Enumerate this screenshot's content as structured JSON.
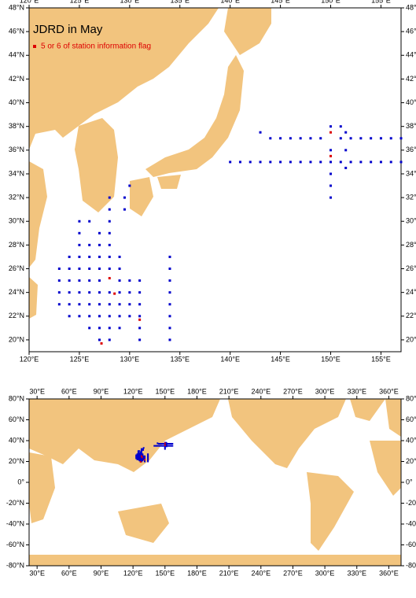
{
  "main_map": {
    "title": "JDRD in May",
    "legend_label": "5 or 6 of station information flag",
    "xlim": [
      120,
      157
    ],
    "ylim": [
      19,
      48
    ],
    "xticks": [
      {
        "value": 120,
        "label": "120°E"
      },
      {
        "value": 125,
        "label": "125°E"
      },
      {
        "value": 130,
        "label": "130°E"
      },
      {
        "value": 135,
        "label": "135°E"
      },
      {
        "value": 140,
        "label": "140°E"
      },
      {
        "value": 145,
        "label": "145°E"
      },
      {
        "value": 150,
        "label": "150°E"
      },
      {
        "value": 155,
        "label": "155°E"
      }
    ],
    "yticks": [
      {
        "value": 20,
        "label": "20°N"
      },
      {
        "value": 22,
        "label": "22°N"
      },
      {
        "value": 24,
        "label": "24°N"
      },
      {
        "value": 26,
        "label": "26°N"
      },
      {
        "value": 28,
        "label": "28°N"
      },
      {
        "value": 30,
        "label": "30°N"
      },
      {
        "value": 32,
        "label": "32°N"
      },
      {
        "value": 34,
        "label": "34°N"
      },
      {
        "value": 36,
        "label": "36°N"
      },
      {
        "value": 38,
        "label": "38°N"
      },
      {
        "value": 40,
        "label": "40°N"
      },
      {
        "value": 42,
        "label": "42°N"
      },
      {
        "value": 44,
        "label": "44°N"
      },
      {
        "value": 46,
        "label": "46°N"
      },
      {
        "value": 48,
        "label": "48°N"
      }
    ]
  },
  "world_map": {
    "xlim": [
      22.5,
      371.5
    ],
    "ylim": [
      -80,
      80
    ],
    "xticks": [
      {
        "value": 30,
        "label": "30°E"
      },
      {
        "value": 60,
        "label": "60°E"
      },
      {
        "value": 90,
        "label": "90°E"
      },
      {
        "value": 120,
        "label": "120°E"
      },
      {
        "value": 150,
        "label": "150°E"
      },
      {
        "value": 180,
        "label": "180°E"
      },
      {
        "value": 210,
        "label": "210°E"
      },
      {
        "value": 240,
        "label": "240°E"
      },
      {
        "value": 270,
        "label": "270°E"
      },
      {
        "value": 300,
        "label": "300°E"
      },
      {
        "value": 330,
        "label": "330°E"
      },
      {
        "value": 360,
        "label": "360°E"
      }
    ],
    "yticks": [
      {
        "value": 80,
        "label": "80°N"
      },
      {
        "value": 60,
        "label": "60°N"
      },
      {
        "value": 40,
        "label": "40°N"
      },
      {
        "value": 20,
        "label": "20°N"
      },
      {
        "value": 0,
        "label": "0°"
      },
      {
        "value": -20,
        "label": "-20°N"
      },
      {
        "value": -40,
        "label": "-40°N"
      },
      {
        "value": -60,
        "label": "-60°N"
      },
      {
        "value": -80,
        "label": "-80°N"
      }
    ]
  },
  "stations": {
    "color": "#0000cc",
    "points": [
      [
        140,
        35
      ],
      [
        141,
        35
      ],
      [
        142,
        35
      ],
      [
        143,
        35
      ],
      [
        144,
        35
      ],
      [
        145,
        35
      ],
      [
        146,
        35
      ],
      [
        147,
        35
      ],
      [
        148,
        35
      ],
      [
        149,
        35
      ],
      [
        150,
        35
      ],
      [
        151,
        35
      ],
      [
        152,
        35
      ],
      [
        153,
        35
      ],
      [
        154,
        35
      ],
      [
        155,
        35
      ],
      [
        156,
        35
      ],
      [
        157,
        35
      ],
      [
        143,
        37.5
      ],
      [
        144,
        37
      ],
      [
        145,
        37
      ],
      [
        146,
        37
      ],
      [
        147,
        37
      ],
      [
        148,
        37
      ],
      [
        149,
        37
      ],
      [
        151,
        37
      ],
      [
        152,
        37
      ],
      [
        153,
        37
      ],
      [
        154,
        37
      ],
      [
        155,
        37
      ],
      [
        156,
        37
      ],
      [
        157,
        37
      ],
      [
        150,
        32
      ],
      [
        150,
        33
      ],
      [
        150,
        34
      ],
      [
        150,
        36
      ],
      [
        150,
        38
      ],
      [
        151,
        38
      ],
      [
        151.5,
        34.5
      ],
      [
        151.5,
        36
      ],
      [
        151.5,
        37.5
      ],
      [
        134,
        20
      ],
      [
        134,
        21
      ],
      [
        134,
        22
      ],
      [
        134,
        23
      ],
      [
        134,
        24
      ],
      [
        134,
        25
      ],
      [
        134,
        26
      ],
      [
        134,
        27
      ],
      [
        131,
        20
      ],
      [
        131,
        21
      ],
      [
        131,
        22
      ],
      [
        131,
        23
      ],
      [
        131,
        24
      ],
      [
        131,
        25
      ],
      [
        123,
        23
      ],
      [
        123,
        24
      ],
      [
        123,
        25
      ],
      [
        123,
        26
      ],
      [
        124,
        22
      ],
      [
        124,
        23
      ],
      [
        124,
        24
      ],
      [
        124,
        25
      ],
      [
        124,
        26
      ],
      [
        124,
        27
      ],
      [
        125,
        22
      ],
      [
        125,
        23
      ],
      [
        125,
        24
      ],
      [
        125,
        25
      ],
      [
        125,
        26
      ],
      [
        125,
        27
      ],
      [
        125,
        28
      ],
      [
        125,
        29
      ],
      [
        125,
        30
      ],
      [
        126,
        21
      ],
      [
        126,
        22
      ],
      [
        126,
        23
      ],
      [
        126,
        24
      ],
      [
        126,
        25
      ],
      [
        126,
        26
      ],
      [
        126,
        27
      ],
      [
        126,
        28
      ],
      [
        126,
        30
      ],
      [
        127,
        20
      ],
      [
        127,
        21
      ],
      [
        127,
        22
      ],
      [
        127,
        23
      ],
      [
        127,
        24
      ],
      [
        127,
        25
      ],
      [
        127,
        26
      ],
      [
        127,
        27
      ],
      [
        127,
        28
      ],
      [
        127,
        29
      ],
      [
        128,
        20
      ],
      [
        128,
        21
      ],
      [
        128,
        22
      ],
      [
        128,
        23
      ],
      [
        128,
        24
      ],
      [
        128,
        26
      ],
      [
        128,
        27
      ],
      [
        128,
        28
      ],
      [
        128,
        29
      ],
      [
        128,
        30
      ],
      [
        128,
        31
      ],
      [
        128,
        32
      ],
      [
        129,
        21
      ],
      [
        129,
        22
      ],
      [
        129,
        23
      ],
      [
        129,
        24
      ],
      [
        129,
        25
      ],
      [
        129,
        26
      ],
      [
        129,
        27
      ],
      [
        130,
        22
      ],
      [
        130,
        23
      ],
      [
        130,
        24
      ],
      [
        130,
        25
      ],
      [
        129.5,
        31
      ],
      [
        129.5,
        32
      ],
      [
        130,
        33
      ]
    ]
  },
  "flagged": {
    "color": "#dd0000",
    "points": [
      [
        128,
        25.2
      ],
      [
        127.2,
        19.7
      ],
      [
        131,
        21.7
      ],
      [
        128.5,
        23.9
      ],
      [
        150,
        37.5
      ],
      [
        150,
        35.5
      ]
    ]
  }
}
